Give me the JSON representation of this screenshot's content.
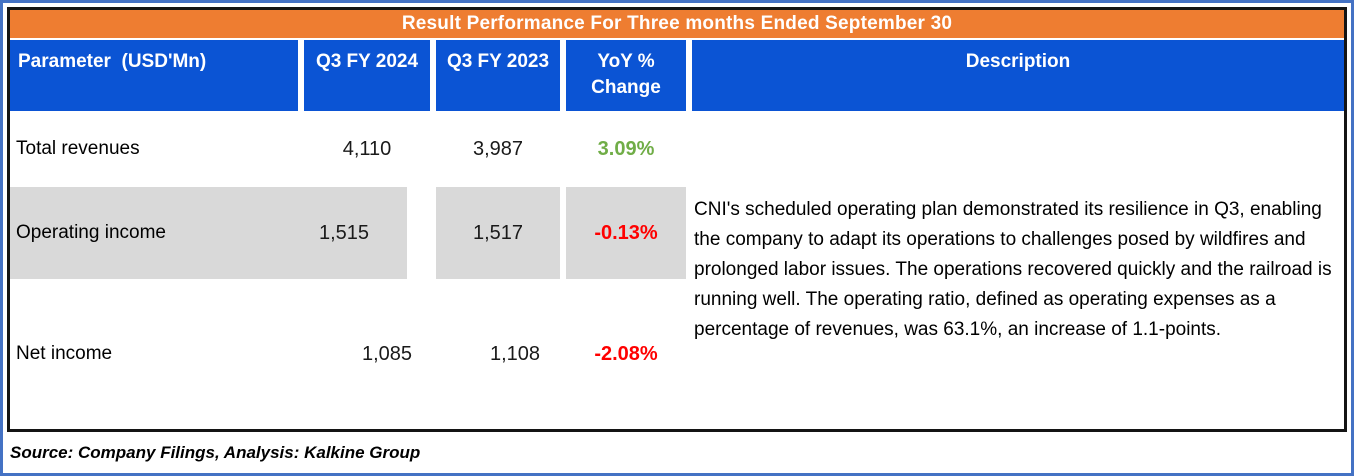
{
  "title": "Result Performance For Three months Ended September 30",
  "columns": [
    "Parameter  (USD'Mn)",
    "Q3 FY 2024",
    "Q3 FY 2023",
    "YoY %\nChange",
    "Description"
  ],
  "rows": [
    {
      "parameter": "Total revenues",
      "q3_fy_2024": "4,110",
      "q3_fy_2023": "3,987",
      "yoy_change": "3.09%",
      "yoy_color": "#70AD47",
      "shaded": false
    },
    {
      "parameter": "Operating income",
      "q3_fy_2024": "1,515",
      "q3_fy_2023": "1,517",
      "yoy_change": "-0.13%",
      "yoy_color": "#FF0000",
      "shaded": true
    },
    {
      "parameter": "Net income",
      "q3_fy_2024": "1,085",
      "q3_fy_2023": "1,108",
      "yoy_change": "-2.08%",
      "yoy_color": "#FF0000",
      "shaded": false
    }
  ],
  "description": "CNI's scheduled operating plan demonstrated its resilience in Q3, enabling the company to adapt its operations to challenges posed by wildfires and prolonged labor issues. The operations recovered quickly and the railroad is running well. The operating ratio, defined as operating expenses as a percentage of revenues, was 63.1%, an increase of 1.1-points.",
  "source_note": "Source: Company Filings, Analysis: Kalkine Group",
  "colors": {
    "title_bar": "#EE7D31",
    "header_bg": "#0B54D4",
    "header_text": "#FFFFFF",
    "shaded_row": "#D9D9D9",
    "positive": "#70AD47",
    "negative": "#FF0000",
    "outer_frame": "#4472C4",
    "table_border": "#141414"
  }
}
